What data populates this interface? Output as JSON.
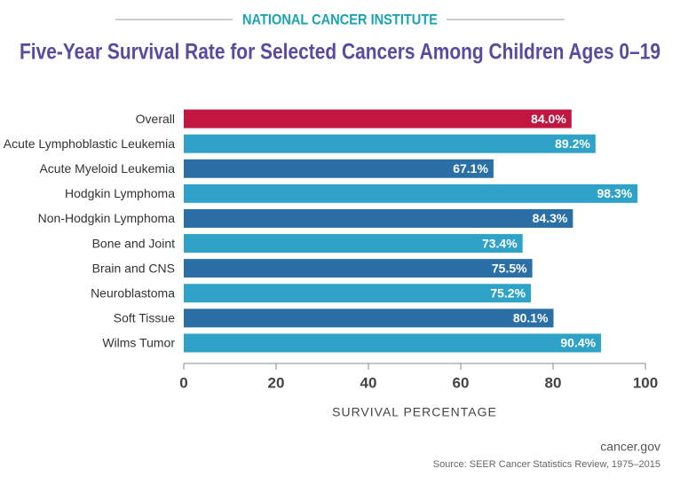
{
  "chart_data": {
    "type": "bar",
    "orientation": "horizontal",
    "header": "NATIONAL CANCER INSTITUTE",
    "title": "Five-Year Survival Rate for Selected Cancers Among Children Ages 0–19",
    "categories": [
      "Overall",
      "Acute Lymphoblastic Leukemia",
      "Acute Myeloid Leukemia",
      "Hodgkin Lymphoma",
      "Non-Hodgkin Lymphoma",
      "Bone and Joint",
      "Brain and CNS",
      "Neuroblastoma",
      "Soft Tissue",
      "Wilms Tumor"
    ],
    "values": [
      84.0,
      89.2,
      67.1,
      98.3,
      84.3,
      73.4,
      75.5,
      75.2,
      80.1,
      90.4
    ],
    "value_labels": [
      "84.0%",
      "89.2%",
      "67.1%",
      "98.3%",
      "84.3%",
      "73.4%",
      "75.5%",
      "75.2%",
      "80.1%",
      "90.4%"
    ],
    "colors": [
      "#c0163f",
      "#2ea3c7",
      "#2a6fa5",
      "#2ea3c7",
      "#2a6fa5",
      "#2ea3c7",
      "#2a6fa5",
      "#2ea3c7",
      "#2a6fa5",
      "#2ea3c7"
    ],
    "xlabel": "SURVIVAL PERCENTAGE",
    "xlim": [
      0,
      100
    ],
    "xticks": [
      0,
      20,
      40,
      60,
      80,
      100
    ],
    "grid": false,
    "site": "cancer.gov",
    "source": "Source:  SEER Cancer Statistics Review, 1975–2015"
  }
}
